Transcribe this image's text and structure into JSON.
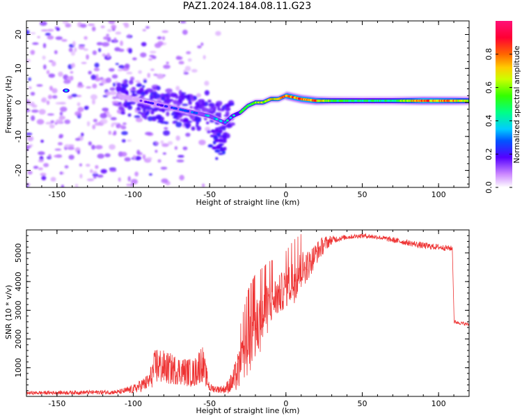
{
  "title": "PAZ1.2024.184.08.11.G23",
  "chart_data": [
    {
      "type": "heatmap",
      "xlabel": "Height of straight line (km)",
      "ylabel": "Frequency (Hz)",
      "xlim": [
        -170,
        120
      ],
      "ylim": [
        -25,
        24
      ],
      "xticks": [
        -150,
        -100,
        -50,
        0,
        50,
        100
      ],
      "yticks": [
        -20,
        -10,
        0,
        10,
        20
      ],
      "colorbar": {
        "label": "Normalized spectral amplitude",
        "range": [
          0.0,
          1.0
        ],
        "ticks": [
          "0.0",
          "0.2",
          "0.4",
          "0.6",
          "0.8"
        ],
        "colormap": "gist_rainbow_r"
      },
      "ridge": {
        "x": [
          -120,
          -100,
          -90,
          -80,
          -70,
          -60,
          -50,
          -45,
          -40,
          -35,
          -30,
          -25,
          -20,
          -15,
          -10,
          -5,
          0,
          10,
          20,
          30,
          50,
          70,
          90,
          110,
          120
        ],
        "freq": [
          3,
          1,
          0,
          -1,
          -2,
          -3,
          -4,
          -5,
          -6,
          -4,
          -3,
          -1,
          0,
          0,
          1,
          1,
          2,
          1,
          0.5,
          0.5,
          0.5,
          0.5,
          0.5,
          0.5,
          0.5
        ],
        "amplitude": [
          0.1,
          0.15,
          0.2,
          0.25,
          0.3,
          0.35,
          0.4,
          0.4,
          0.45,
          0.5,
          0.55,
          0.6,
          0.7,
          0.75,
          0.8,
          0.85,
          0.9,
          0.95,
          0.9,
          0.6,
          0.5,
          0.55,
          0.95,
          0.85,
          0.7
        ]
      }
    },
    {
      "type": "line",
      "xlabel": "Height of straight line (km)",
      "ylabel": "SNR (10 * v/v)",
      "xlim": [
        -170,
        120
      ],
      "ylim": [
        0,
        5800
      ],
      "xticks": [
        -150,
        -100,
        -50,
        0,
        50,
        100
      ],
      "yticks": [
        1000,
        2000,
        3000,
        4000,
        5000
      ],
      "color": "#ee3333",
      "envelope": {
        "x": [
          -170,
          -110,
          -100,
          -90,
          -85,
          -80,
          -70,
          -60,
          -55,
          -50,
          -45,
          -40,
          -35,
          -30,
          -25,
          -20,
          -15,
          -10,
          -5,
          0,
          5,
          10,
          15,
          20,
          25,
          30,
          35,
          40,
          50,
          60,
          70,
          80,
          90,
          100,
          109,
          110,
          115,
          120
        ],
        "mean": [
          120,
          150,
          250,
          500,
          1100,
          1000,
          900,
          800,
          1200,
          300,
          250,
          250,
          500,
          1000,
          1700,
          2300,
          2700,
          3300,
          3500,
          3800,
          4000,
          4400,
          4600,
          5000,
          5300,
          5450,
          5500,
          5550,
          5600,
          5550,
          5450,
          5350,
          5250,
          5200,
          5150,
          2600,
          2550,
          2500
        ],
        "amp": [
          60,
          80,
          150,
          300,
          700,
          600,
          500,
          500,
          700,
          150,
          120,
          150,
          400,
          800,
          1100,
          1100,
          1000,
          800,
          700,
          700,
          800,
          700,
          500,
          400,
          300,
          150,
          100,
          80,
          80,
          80,
          100,
          100,
          120,
          100,
          100,
          60,
          60,
          60
        ]
      }
    }
  ]
}
